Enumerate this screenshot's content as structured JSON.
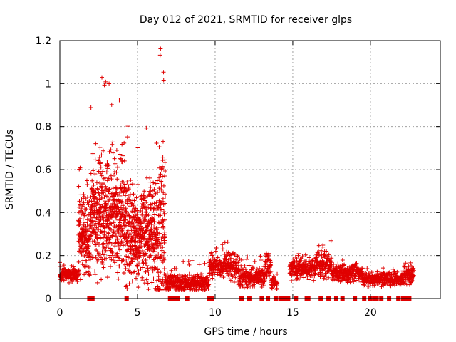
{
  "chart_data": {
    "type": "scatter",
    "title": "Day 012 of 2021, SRMTID for receiver glps",
    "xlabel": "GPS time / hours",
    "ylabel": "SRMTID / TECUs",
    "xlim": [
      0,
      24.5
    ],
    "ylim": [
      0,
      1.2
    ],
    "xticks": [
      0,
      5,
      10,
      15,
      20
    ],
    "xtick_labels": [
      "0",
      "5",
      "10",
      "15",
      "20"
    ],
    "yticks": [
      0,
      0.2,
      0.4,
      0.6,
      0.8,
      1.0,
      1.2
    ],
    "ytick_labels": [
      "0",
      "0.2",
      "0.4",
      "0.6",
      "0.8",
      "1",
      "1.2"
    ],
    "grid": true,
    "marker": "plus",
    "color": "#e00000",
    "series": [
      {
        "name": "SRMTID",
        "segments": [
          {
            "x_start": 0.0,
            "x_end": 1.2,
            "base": 0.11,
            "spread": 0.04,
            "max": 0.17
          },
          {
            "x_start": 1.2,
            "x_end": 2.0,
            "base": 0.3,
            "spread": 0.25,
            "max": 0.7
          },
          {
            "x_start": 2.0,
            "x_end": 4.2,
            "base": 0.4,
            "spread": 0.35,
            "max": 1.03
          },
          {
            "x_start": 4.2,
            "x_end": 6.3,
            "base": 0.3,
            "spread": 0.28,
            "max": 0.81
          },
          {
            "x_start": 6.3,
            "x_end": 6.8,
            "base": 0.3,
            "spread": 0.45,
            "max": 1.18
          },
          {
            "x_start": 6.8,
            "x_end": 7.6,
            "base": 0.08,
            "spread": 0.05,
            "max": 0.15
          },
          {
            "x_start": 7.6,
            "x_end": 9.6,
            "base": 0.07,
            "spread": 0.05,
            "max": 0.18
          },
          {
            "x_start": 9.6,
            "x_end": 11.5,
            "base": 0.15,
            "spread": 0.08,
            "max": 0.27
          },
          {
            "x_start": 11.5,
            "x_end": 13.2,
            "base": 0.1,
            "spread": 0.06,
            "max": 0.2
          },
          {
            "x_start": 13.2,
            "x_end": 13.6,
            "base": 0.16,
            "spread": 0.07,
            "max": 0.23
          },
          {
            "x_start": 13.6,
            "x_end": 14.0,
            "base": 0.07,
            "spread": 0.04,
            "max": 0.12
          },
          {
            "x_start": 14.8,
            "x_end": 16.5,
            "base": 0.14,
            "spread": 0.06,
            "max": 0.21
          },
          {
            "x_start": 16.5,
            "x_end": 17.5,
            "base": 0.16,
            "spread": 0.08,
            "max": 0.28
          },
          {
            "x_start": 17.5,
            "x_end": 19.5,
            "base": 0.12,
            "spread": 0.05,
            "max": 0.19
          },
          {
            "x_start": 19.5,
            "x_end": 22.0,
            "base": 0.09,
            "spread": 0.04,
            "max": 0.16
          },
          {
            "x_start": 22.0,
            "x_end": 22.8,
            "base": 0.11,
            "spread": 0.05,
            "max": 0.18
          }
        ]
      }
    ],
    "zero_flags_x": [
      1.9,
      2.0,
      2.1,
      4.3,
      7.1,
      7.2,
      7.3,
      7.4,
      7.5,
      7.6,
      8.2,
      9.6,
      9.8,
      11.7,
      12.2,
      13.0,
      13.4,
      13.9,
      14.2,
      14.3,
      14.4,
      14.5,
      14.6,
      14.7,
      15.2,
      15.9,
      16.0,
      16.8,
      17.3,
      17.8,
      18.2,
      19.0,
      19.6,
      20.0,
      20.3,
      20.4,
      20.7,
      21.2,
      21.8,
      22.1,
      22.3,
      22.5
    ]
  }
}
